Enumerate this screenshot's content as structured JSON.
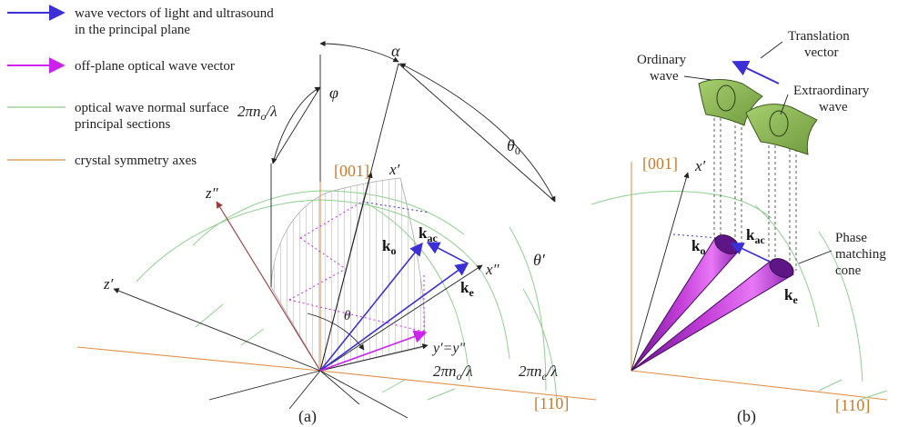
{
  "legend": {
    "items": [
      {
        "line1": "wave vectors of light and ultrasound",
        "line2": "in the principal plane",
        "color": "#3b2fd6"
      },
      {
        "line1": "off-plane optical wave vector",
        "line2": "",
        "color": "#cc22ee"
      },
      {
        "line1": "optical wave normal surface",
        "line2": "principal sections",
        "color": "#8fcf8f"
      },
      {
        "line1": "crystal symmetry axes",
        "line2": "",
        "color": "#e0904a"
      }
    ]
  },
  "panel_a": {
    "label": "(a)",
    "axis_001": "[001]",
    "axis_110": "[110]",
    "alpha": "α",
    "phi": "φ",
    "theta0_sym": "θ",
    "theta0_sub": "0",
    "theta_prime": "θ′",
    "theta": "θ",
    "radius_no_top": "2πn",
    "radius_no_top_sub": "o",
    "radius_no_top_tail": "/λ",
    "radius_no_bottom": "2πn",
    "radius_no_bottom_sub": "o",
    "radius_no_bottom_tail": "/λ",
    "radius_ne": "2πn",
    "radius_ne_sub": "e",
    "radius_ne_tail": "/λ",
    "x_prime": "x′",
    "x_double": "x″",
    "z_double": "z″",
    "z_prime": "z′",
    "y_eq": "y′=y″",
    "k_o": "k",
    "k_o_sub": "o",
    "k_ac": "k",
    "k_ac_sub": "ac",
    "k_e": "k",
    "k_e_sub": "e"
  },
  "panel_b": {
    "label": "(b)",
    "axis_001": "[001]",
    "axis_110": "[110]",
    "x_prime": "x′",
    "ordinary_line1": "Ordinary",
    "ordinary_line2": "wave",
    "translation_line1": "Translation",
    "translation_line2": "vector",
    "extraordinary_line1": "Extraordinary",
    "extraordinary_line2": "wave",
    "phase_line1": "Phase",
    "phase_line2": "matching",
    "phase_line3": "cone",
    "k_o": "k",
    "k_o_sub": "o",
    "k_ac": "k",
    "k_ac_sub": "ac",
    "k_e": "k",
    "k_e_sub": "e"
  },
  "colors": {
    "in_plane": "#3b2fd6",
    "off_plane": "#cc22ee",
    "surface": "#8fcf8f",
    "axes": "#e0904a",
    "cone_dark": "#7a1fa0",
    "cone_light": "#e060f0",
    "plate_fill": "#8db85a",
    "plate_stroke": "#3d5a1e"
  }
}
